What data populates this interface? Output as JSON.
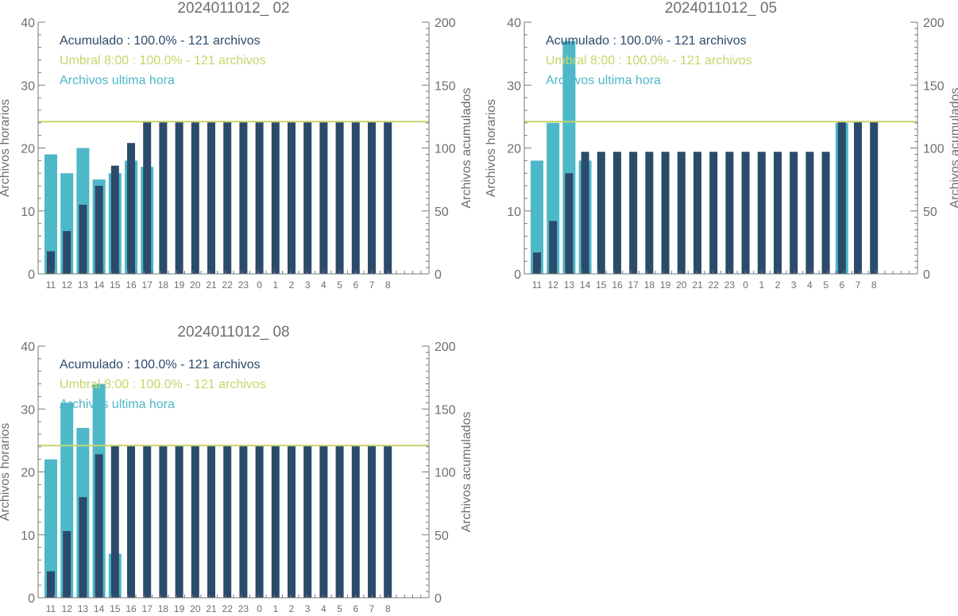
{
  "colors": {
    "hourly": "#4db8c8",
    "cumulative": "#2c4a6b",
    "threshold": "#c8d46a",
    "axis": "#7a7a7a"
  },
  "chart_data": [
    {
      "type": "bar",
      "title": "2024011012_ 02",
      "ylabel": "Archivos horarios",
      "y2label": "Archivos acumulados",
      "ylim": [
        0,
        40
      ],
      "y2lim": [
        0,
        200
      ],
      "yticks": [
        "0",
        "10",
        "20",
        "30",
        "40"
      ],
      "y2ticks": [
        "0",
        "50",
        "100",
        "150",
        "200"
      ],
      "categories": [
        "11",
        "12",
        "13",
        "14",
        "15",
        "16",
        "17",
        "18",
        "19",
        "20",
        "21",
        "22",
        "23",
        "0",
        "1",
        "2",
        "3",
        "4",
        "5",
        "6",
        "7",
        "8"
      ],
      "legend": [
        {
          "text": "Acumulado : 100.0% - 121 archivos",
          "role": "cumulative"
        },
        {
          "text": "Umbral 8:00 : 100.0% - 121 archivos",
          "role": "threshold"
        },
        {
          "text": "Archivos ultima hora",
          "role": "hourly"
        }
      ],
      "threshold": 121,
      "series": [
        {
          "name": "Archivos ultima hora",
          "axis": "left",
          "values": [
            19,
            16,
            20,
            15,
            16,
            18,
            17,
            0,
            0,
            0,
            0,
            0,
            0,
            0,
            0,
            0,
            0,
            0,
            0,
            0,
            0,
            0
          ]
        },
        {
          "name": "Acumulado",
          "axis": "right",
          "values": [
            18,
            34,
            55,
            70,
            86,
            104,
            121,
            121,
            121,
            121,
            121,
            121,
            121,
            121,
            121,
            121,
            121,
            121,
            121,
            121,
            121,
            121
          ]
        }
      ]
    },
    {
      "type": "bar",
      "title": "2024011012_ 05",
      "ylabel": "Archivos horarios",
      "y2label": "Archivos acumulados",
      "ylim": [
        0,
        40
      ],
      "y2lim": [
        0,
        200
      ],
      "yticks": [
        "0",
        "10",
        "20",
        "30",
        "40"
      ],
      "y2ticks": [
        "0",
        "50",
        "100",
        "150",
        "200"
      ],
      "categories": [
        "11",
        "12",
        "13",
        "14",
        "15",
        "16",
        "17",
        "18",
        "19",
        "20",
        "21",
        "22",
        "23",
        "0",
        "1",
        "2",
        "3",
        "4",
        "5",
        "6",
        "7",
        "8"
      ],
      "legend": [
        {
          "text": "Acumulado : 100.0% - 121 archivos",
          "role": "cumulative"
        },
        {
          "text": "Umbral 8:00 : 100.0% - 121 archivos",
          "role": "threshold"
        },
        {
          "text": "Archivos ultima hora",
          "role": "hourly"
        }
      ],
      "threshold": 121,
      "series": [
        {
          "name": "Archivos ultima hora",
          "axis": "left",
          "values": [
            18,
            24,
            37,
            18,
            0,
            0,
            0,
            0,
            0,
            0,
            0,
            0,
            0,
            0,
            0,
            0,
            0,
            0,
            0,
            24,
            0,
            0
          ]
        },
        {
          "name": "Acumulado",
          "axis": "right",
          "values": [
            17,
            42,
            80,
            97,
            97,
            97,
            97,
            97,
            97,
            97,
            97,
            97,
            97,
            97,
            97,
            97,
            97,
            97,
            97,
            121,
            121,
            121
          ]
        }
      ]
    },
    {
      "type": "bar",
      "title": "2024011012_ 08",
      "ylabel": "Archivos horarios",
      "y2label": "Archivos acumulados",
      "ylim": [
        0,
        40
      ],
      "y2lim": [
        0,
        200
      ],
      "yticks": [
        "0",
        "10",
        "20",
        "30",
        "40"
      ],
      "y2ticks": [
        "0",
        "50",
        "100",
        "150",
        "200"
      ],
      "categories": [
        "11",
        "12",
        "13",
        "14",
        "15",
        "16",
        "17",
        "18",
        "19",
        "20",
        "21",
        "22",
        "23",
        "0",
        "1",
        "2",
        "3",
        "4",
        "5",
        "6",
        "7",
        "8"
      ],
      "legend": [
        {
          "text": "Acumulado : 100.0% - 121 archivos",
          "role": "cumulative"
        },
        {
          "text": "Umbral 8:00 : 100.0% - 121 archivos",
          "role": "threshold"
        },
        {
          "text": "Archivos ultima hora",
          "role": "hourly"
        }
      ],
      "threshold": 121,
      "series": [
        {
          "name": "Archivos ultima hora",
          "axis": "left",
          "values": [
            22,
            31,
            27,
            34,
            7,
            0,
            0,
            0,
            0,
            0,
            0,
            0,
            0,
            0,
            0,
            0,
            0,
            0,
            0,
            0,
            0,
            0
          ]
        },
        {
          "name": "Acumulado",
          "axis": "right",
          "values": [
            21,
            53,
            80,
            114,
            121,
            121,
            121,
            121,
            121,
            121,
            121,
            121,
            121,
            121,
            121,
            121,
            121,
            121,
            121,
            121,
            121,
            121
          ]
        }
      ]
    }
  ]
}
